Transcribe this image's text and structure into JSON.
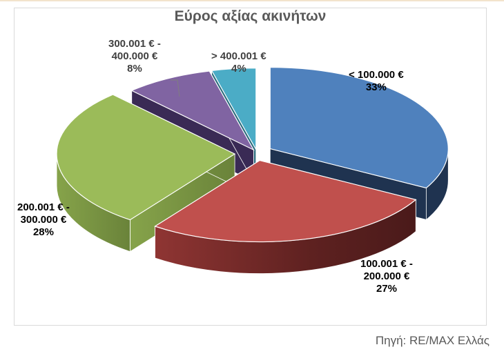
{
  "chart_data": {
    "type": "pie",
    "variant": "3d-exploded",
    "title": "Εύρος αξίας ακινήτων",
    "categories": [
      "< 100.000 €",
      "100.001 € - 200.000 €",
      "200.001 € - 300.000 €",
      "300.001 € - 400.000 €",
      "> 400.001 €"
    ],
    "values": [
      33,
      27,
      28,
      8,
      4
    ],
    "unit": "%",
    "colors": [
      "#4f81bd",
      "#c0504d",
      "#9bbb59",
      "#8064a2",
      "#4bacc6"
    ],
    "legend": "none (data labels)",
    "source": "Πηγή: RE/MAX Ελλάς"
  },
  "labels": [
    {
      "line1": "< 100.000 €",
      "line2": "33%"
    },
    {
      "line1": "100.001 € -",
      "line2": "200.000 €",
      "line3": "27%"
    },
    {
      "line1": "200.001 € -",
      "line2": "300.000 €",
      "line3": "28%"
    },
    {
      "line1": "300.001 € -",
      "line2": "400.000 €",
      "line3": "8%"
    },
    {
      "line1": "> 400.001 €",
      "line2": "4%"
    }
  ]
}
